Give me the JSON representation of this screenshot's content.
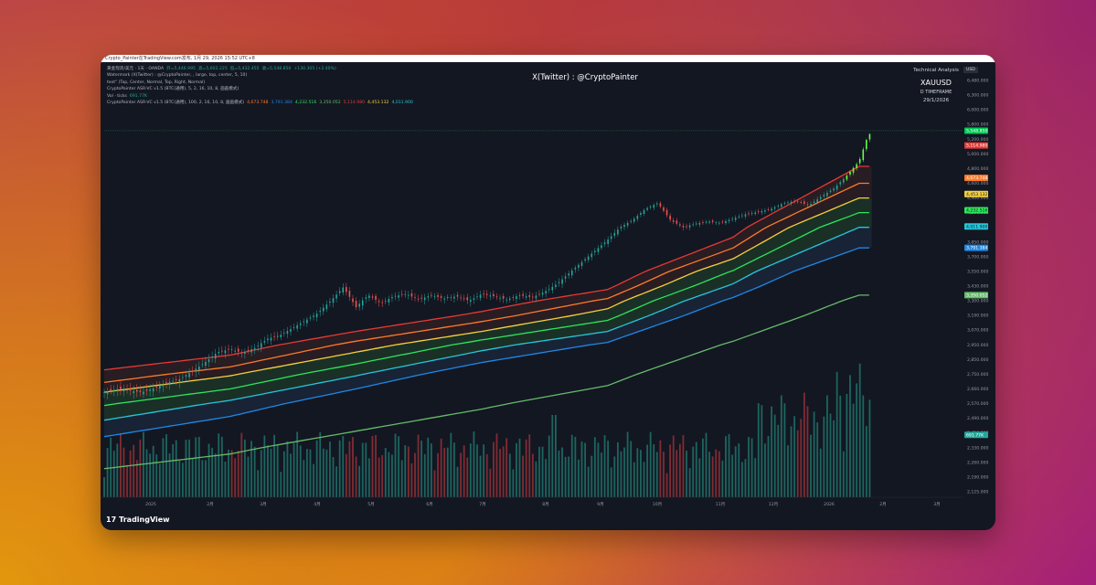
{
  "header": {
    "source_text": "Crypto_Painter在TradingView.com发布, 1月 29, 2026 15:52 UTC+8"
  },
  "legend": [
    {
      "label": "黄金现货/美元 · 1天 · OANDA",
      "values": [
        "开=5,446.995",
        "高=5,602.225",
        "低=5,432.455",
        "收=5,548.850",
        "+130.305 (+2.40%)"
      ]
    },
    {
      "label": "Watermark (X(Twitter) : @CryptoPainter, , large, top, center, 5, 10)",
      "values": []
    },
    {
      "label": "text\" (Top, Center, Normal, Top, Right, Normal)",
      "values": []
    },
    {
      "label": "CryptoPainter ASR-VC v1.5 (BTC(通用), 5, 2, 16, 10, 8, 画画模式)",
      "values": []
    },
    {
      "label": "Vol · ticks",
      "values": [
        "691.77K"
      ]
    },
    {
      "label": "CryptoPainter ASR-VC v1.5 (BTC(通用), 100, 2, 16, 10, 8, 画画模式)",
      "values": [
        "4,673.748",
        "3,791.384",
        "4,232.516",
        "3,350.052",
        "5,114.980",
        "4,453.132",
        "4,011.900"
      ]
    }
  ],
  "watermark": "X(Twitter) : @CryptoPainter",
  "technical_analysis": {
    "title": "Technical Analysis",
    "symbol": "XAUUSD",
    "timeframe": "D TIMEFRAME",
    "date": "29/1/2026"
  },
  "currency": "USD",
  "brand": "TradingView",
  "colors": {
    "background": "#131722",
    "up": "#26a69a",
    "down": "#ef5350",
    "band_red": "#e53935",
    "band_orange": "#ff7a2a",
    "band_yellow": "#f4d03f",
    "band_green": "#2ee65a",
    "band_cyan": "#26c6da",
    "band_blue": "#1e88e5",
    "band_lightgreen": "#66bb6a"
  },
  "chart_data": {
    "type": "line",
    "title": "",
    "xlabel": "",
    "ylabel": "",
    "x_tick_labels": [
      "2025",
      "2月",
      "3月",
      "4月",
      "5月",
      "6月",
      "7月",
      "8月",
      "9月",
      "10月",
      "11月",
      "12月",
      "2026",
      "2月",
      "3月"
    ],
    "y_tick_labels": [
      "6,480.000",
      "6,300.000",
      "6,000.000",
      "5,800.000",
      "5,200.000",
      "5,000.000",
      "4,800.000",
      "4,600.000",
      "4,400.000",
      "4,200.000",
      "4,000.000",
      "3,850.000",
      "3,700.000",
      "3,550.000",
      "3,430.000",
      "3,300.000",
      "3,190.000",
      "3,070.000",
      "2,950.000",
      "2,850.000",
      "2,750.000",
      "2,660.000",
      "2,570.000",
      "2,490.000",
      "2,410.000",
      "2,330.000",
      "2,260.000",
      "2,190.000",
      "2,125.000"
    ],
    "price_labels": [
      {
        "value": "5,548.850",
        "color": "#00c853"
      },
      {
        "value": "5,114.980",
        "color": "#e53935"
      },
      {
        "value": "4,673.748",
        "color": "#ff7a2a"
      },
      {
        "value": "4,453.132",
        "color": "#f4d03f"
      },
      {
        "value": "4,232.516",
        "color": "#2ee65a"
      },
      {
        "value": "4,011.900",
        "color": "#26c6da"
      },
      {
        "value": "3,791.384",
        "color": "#1e88e5"
      },
      {
        "value": "3,350.052",
        "color": "#66bb6a"
      },
      {
        "value": "691.77K",
        "color": "#26a69a"
      }
    ],
    "close_series": [
      [
        0,
        2640
      ],
      [
        5,
        2660
      ],
      [
        10,
        2650
      ],
      [
        15,
        2640
      ],
      [
        20,
        2665
      ],
      [
        25,
        2700
      ],
      [
        30,
        2720
      ],
      [
        35,
        2770
      ],
      [
        40,
        2830
      ],
      [
        45,
        2900
      ],
      [
        50,
        2920
      ],
      [
        55,
        2895
      ],
      [
        60,
        2930
      ],
      [
        65,
        3000
      ],
      [
        70,
        3030
      ],
      [
        75,
        3090
      ],
      [
        80,
        3150
      ],
      [
        85,
        3210
      ],
      [
        90,
        3300
      ],
      [
        95,
        3420
      ],
      [
        100,
        3250
      ],
      [
        105,
        3350
      ],
      [
        110,
        3280
      ],
      [
        115,
        3340
      ],
      [
        120,
        3360
      ],
      [
        125,
        3310
      ],
      [
        130,
        3350
      ],
      [
        135,
        3320
      ],
      [
        140,
        3340
      ],
      [
        145,
        3300
      ],
      [
        150,
        3360
      ],
      [
        155,
        3340
      ],
      [
        160,
        3310
      ],
      [
        165,
        3350
      ],
      [
        170,
        3330
      ],
      [
        175,
        3380
      ],
      [
        180,
        3450
      ],
      [
        185,
        3540
      ],
      [
        190,
        3650
      ],
      [
        195,
        3760
      ],
      [
        200,
        3870
      ],
      [
        205,
        4000
      ],
      [
        210,
        4100
      ],
      [
        215,
        4250
      ],
      [
        220,
        4330
      ],
      [
        225,
        4100
      ],
      [
        230,
        4000
      ],
      [
        235,
        4050
      ],
      [
        240,
        4080
      ],
      [
        245,
        4060
      ],
      [
        250,
        4120
      ],
      [
        255,
        4180
      ],
      [
        260,
        4210
      ],
      [
        265,
        4250
      ],
      [
        270,
        4330
      ],
      [
        275,
        4360
      ],
      [
        280,
        4300
      ],
      [
        285,
        4420
      ],
      [
        290,
        4530
      ],
      [
        295,
        4700
      ],
      [
        300,
        4900
      ],
      [
        303,
        5200
      ],
      [
        305,
        5550
      ]
    ],
    "bands": [
      {
        "name": "5,114.980",
        "color": "#e53935",
        "values": [
          [
            0,
            2780
          ],
          [
            50,
            2880
          ],
          [
            100,
            3060
          ],
          [
            150,
            3220
          ],
          [
            200,
            3400
          ],
          [
            250,
            3900
          ],
          [
            300,
            4830
          ]
        ]
      },
      {
        "name": "4,673.748",
        "color": "#ff7a2a",
        "values": [
          [
            0,
            2700
          ],
          [
            50,
            2800
          ],
          [
            100,
            2980
          ],
          [
            150,
            3140
          ],
          [
            200,
            3320
          ],
          [
            250,
            3790
          ],
          [
            300,
            4600
          ]
        ]
      },
      {
        "name": "4,453.132",
        "color": "#f4d03f",
        "values": [
          [
            0,
            2640
          ],
          [
            50,
            2740
          ],
          [
            100,
            2900
          ],
          [
            150,
            3060
          ],
          [
            200,
            3240
          ],
          [
            250,
            3680
          ],
          [
            300,
            4400
          ]
        ]
      },
      {
        "name": "4,232.516",
        "color": "#2ee65a",
        "values": [
          [
            0,
            2560
          ],
          [
            50,
            2660
          ],
          [
            100,
            2820
          ],
          [
            150,
            2990
          ],
          [
            200,
            3150
          ],
          [
            250,
            3560
          ],
          [
            300,
            4200
          ]
        ]
      },
      {
        "name": "4,011.900",
        "color": "#26c6da",
        "values": [
          [
            0,
            2480
          ],
          [
            50,
            2590
          ],
          [
            100,
            2740
          ],
          [
            150,
            2910
          ],
          [
            200,
            3060
          ],
          [
            250,
            3450
          ],
          [
            300,
            4000
          ]
        ]
      },
      {
        "name": "3,791.384",
        "color": "#1e88e5",
        "values": [
          [
            0,
            2390
          ],
          [
            50,
            2500
          ],
          [
            100,
            2660
          ],
          [
            150,
            2830
          ],
          [
            200,
            2970
          ],
          [
            250,
            3330
          ],
          [
            300,
            3790
          ]
        ]
      },
      {
        "name": "3,350.052",
        "color": "#66bb6a",
        "values": [
          [
            0,
            2230
          ],
          [
            50,
            2300
          ],
          [
            100,
            2420
          ],
          [
            150,
            2540
          ],
          [
            200,
            2680
          ],
          [
            250,
            2980
          ],
          [
            300,
            3350
          ]
        ]
      }
    ],
    "ylim": [
      2125,
      6480
    ]
  }
}
